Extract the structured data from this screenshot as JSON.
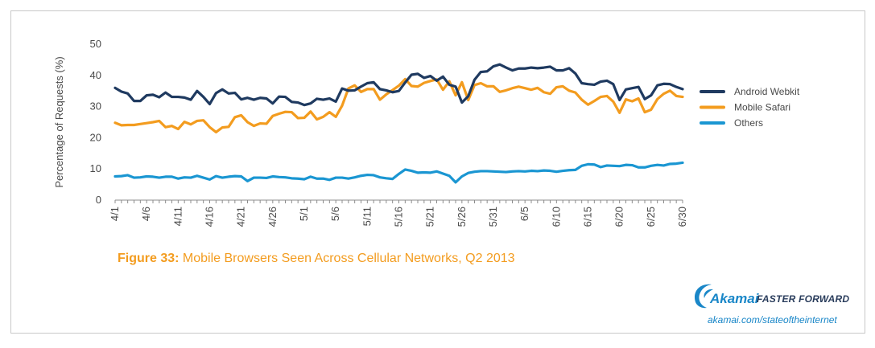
{
  "caption": {
    "label": "Figure 33:",
    "text": "Mobile Browsers Seen Across Cellular Networks, Q2 2013"
  },
  "brand": {
    "name": "Akamai",
    "tagline": "FASTER FORWARD",
    "url": "akamai.com/stateoftheinternet"
  },
  "chart_data": {
    "type": "line",
    "ylabel": "Percentage of Requests (%)",
    "xlabel": "",
    "ylim": [
      0,
      50
    ],
    "yticks": [
      0,
      10,
      20,
      30,
      40,
      50
    ],
    "grid": false,
    "legend_position": "right",
    "x": [
      "4/1",
      "4/2",
      "4/3",
      "4/4",
      "4/5",
      "4/6",
      "4/7",
      "4/8",
      "4/9",
      "4/10",
      "4/11",
      "4/12",
      "4/13",
      "4/14",
      "4/15",
      "4/16",
      "4/17",
      "4/18",
      "4/19",
      "4/20",
      "4/21",
      "4/22",
      "4/23",
      "4/24",
      "4/25",
      "4/26",
      "4/27",
      "4/28",
      "4/29",
      "4/30",
      "5/1",
      "5/2",
      "5/3",
      "5/4",
      "5/5",
      "5/6",
      "5/7",
      "5/8",
      "5/9",
      "5/10",
      "5/11",
      "5/12",
      "5/13",
      "5/14",
      "5/15",
      "5/16",
      "5/17",
      "5/18",
      "5/19",
      "5/20",
      "5/21",
      "5/22",
      "5/23",
      "5/24",
      "5/25",
      "5/26",
      "5/27",
      "5/28",
      "5/29",
      "5/30",
      "5/31",
      "6/1",
      "6/2",
      "6/3",
      "6/4",
      "6/5",
      "6/6",
      "6/7",
      "6/8",
      "6/9",
      "6/10",
      "6/11",
      "6/12",
      "6/13",
      "6/14",
      "6/15",
      "6/16",
      "6/17",
      "6/18",
      "6/19",
      "6/20",
      "6/21",
      "6/22",
      "6/23",
      "6/24",
      "6/25",
      "6/26",
      "6/27",
      "6/28",
      "6/29",
      "6/30"
    ],
    "xtick_labels": [
      "4/1",
      "4/6",
      "4/11",
      "4/16",
      "4/21",
      "4/26",
      "5/1",
      "5/6",
      "5/11",
      "5/16",
      "5/21",
      "5/26",
      "5/31",
      "6/5",
      "6/10",
      "6/15",
      "6/20",
      "6/25",
      "6/30"
    ],
    "series": [
      {
        "name": "Android Webkit",
        "color": "#1f3a60",
        "values": [
          36,
          34.8,
          34.2,
          31.8,
          31.8,
          33.6,
          33.8,
          33,
          34.5,
          33.1,
          33.1,
          32.9,
          32.2,
          35,
          33.1,
          30.8,
          34.3,
          35.5,
          34.2,
          34.4,
          32.3,
          32.8,
          32.2,
          32.8,
          32.6,
          31,
          33.2,
          33.1,
          31.5,
          31.3,
          30.5,
          31,
          32.5,
          32.2,
          32.6,
          31.6,
          35.8,
          35.1,
          35.2,
          36.4,
          37.5,
          37.8,
          35.6,
          35.2,
          34.6,
          35,
          37.7,
          40.2,
          40.5,
          39.2,
          39.8,
          38.3,
          39.6,
          37,
          36.4,
          31.3,
          33.3,
          38.6,
          41.1,
          41.3,
          42.9,
          43.5,
          42.5,
          41.6,
          42.2,
          42.2,
          42.5,
          42.3,
          42.5,
          42.8,
          41.6,
          41.6,
          42.3,
          40.6,
          37.5,
          37.2,
          37,
          38,
          38.3,
          37.2,
          32.1,
          35.5,
          35.9,
          36.3,
          32.4,
          33.6,
          36.8,
          37.3,
          37.2,
          36.3,
          35.6
        ]
      },
      {
        "name": "Mobile Safari",
        "color": "#f39c1f",
        "values": [
          24.8,
          24,
          24.1,
          24.1,
          24.4,
          24.7,
          25,
          25.4,
          23.4,
          23.8,
          22.8,
          25.1,
          24.3,
          25.4,
          25.6,
          23.4,
          21.8,
          23.3,
          23.5,
          26.6,
          27.2,
          25,
          23.8,
          24.6,
          24.5,
          27,
          27.7,
          28.3,
          28.2,
          26.3,
          26.4,
          28.4,
          25.9,
          26.7,
          28.2,
          26.7,
          30.3,
          35.8,
          36.8,
          34.7,
          35.6,
          35.6,
          32.2,
          33.9,
          35.3,
          36.7,
          38.8,
          36.6,
          36.4,
          37.6,
          38.2,
          38.7,
          35.4,
          38.1,
          33.6,
          37.8,
          32.1,
          36.9,
          37.5,
          36.5,
          36.5,
          34.7,
          35.2,
          35.9,
          36.4,
          35.9,
          35.4,
          36,
          34.6,
          34.1,
          36.2,
          36.5,
          35.1,
          34.5,
          32.2,
          30.6,
          31.8,
          33.1,
          33.4,
          31.6,
          28,
          32.3,
          31.7,
          32.6,
          28.2,
          29,
          32.4,
          34.1,
          35.1,
          33.4,
          33.1
        ]
      },
      {
        "name": "Others",
        "color": "#1a96d2",
        "values": [
          7.6,
          7.7,
          8,
          7.2,
          7.3,
          7.6,
          7.5,
          7.2,
          7.5,
          7.5,
          6.9,
          7.3,
          7.2,
          7.8,
          7.2,
          6.6,
          7.7,
          7.2,
          7.5,
          7.7,
          7.6,
          6.1,
          7.2,
          7.2,
          7.1,
          7.6,
          7.4,
          7.3,
          7,
          6.9,
          6.7,
          7.5,
          6.9,
          6.9,
          6.5,
          7.2,
          7.2,
          6.9,
          7.3,
          7.8,
          8.1,
          8,
          7.3,
          7,
          6.8,
          8.4,
          9.8,
          9.4,
          8.8,
          8.9,
          8.8,
          9.2,
          8.5,
          7.8,
          5.7,
          7.6,
          8.7,
          9.1,
          9.3,
          9.3,
          9.2,
          9.1,
          9,
          9.2,
          9.3,
          9.2,
          9.4,
          9.3,
          9.5,
          9.4,
          9.1,
          9.4,
          9.6,
          9.7,
          11,
          11.5,
          11.4,
          10.6,
          11.1,
          11,
          10.9,
          11.3,
          11.2,
          10.5,
          10.5,
          11,
          11.3,
          11.1,
          11.6,
          11.7,
          12
        ]
      }
    ]
  }
}
